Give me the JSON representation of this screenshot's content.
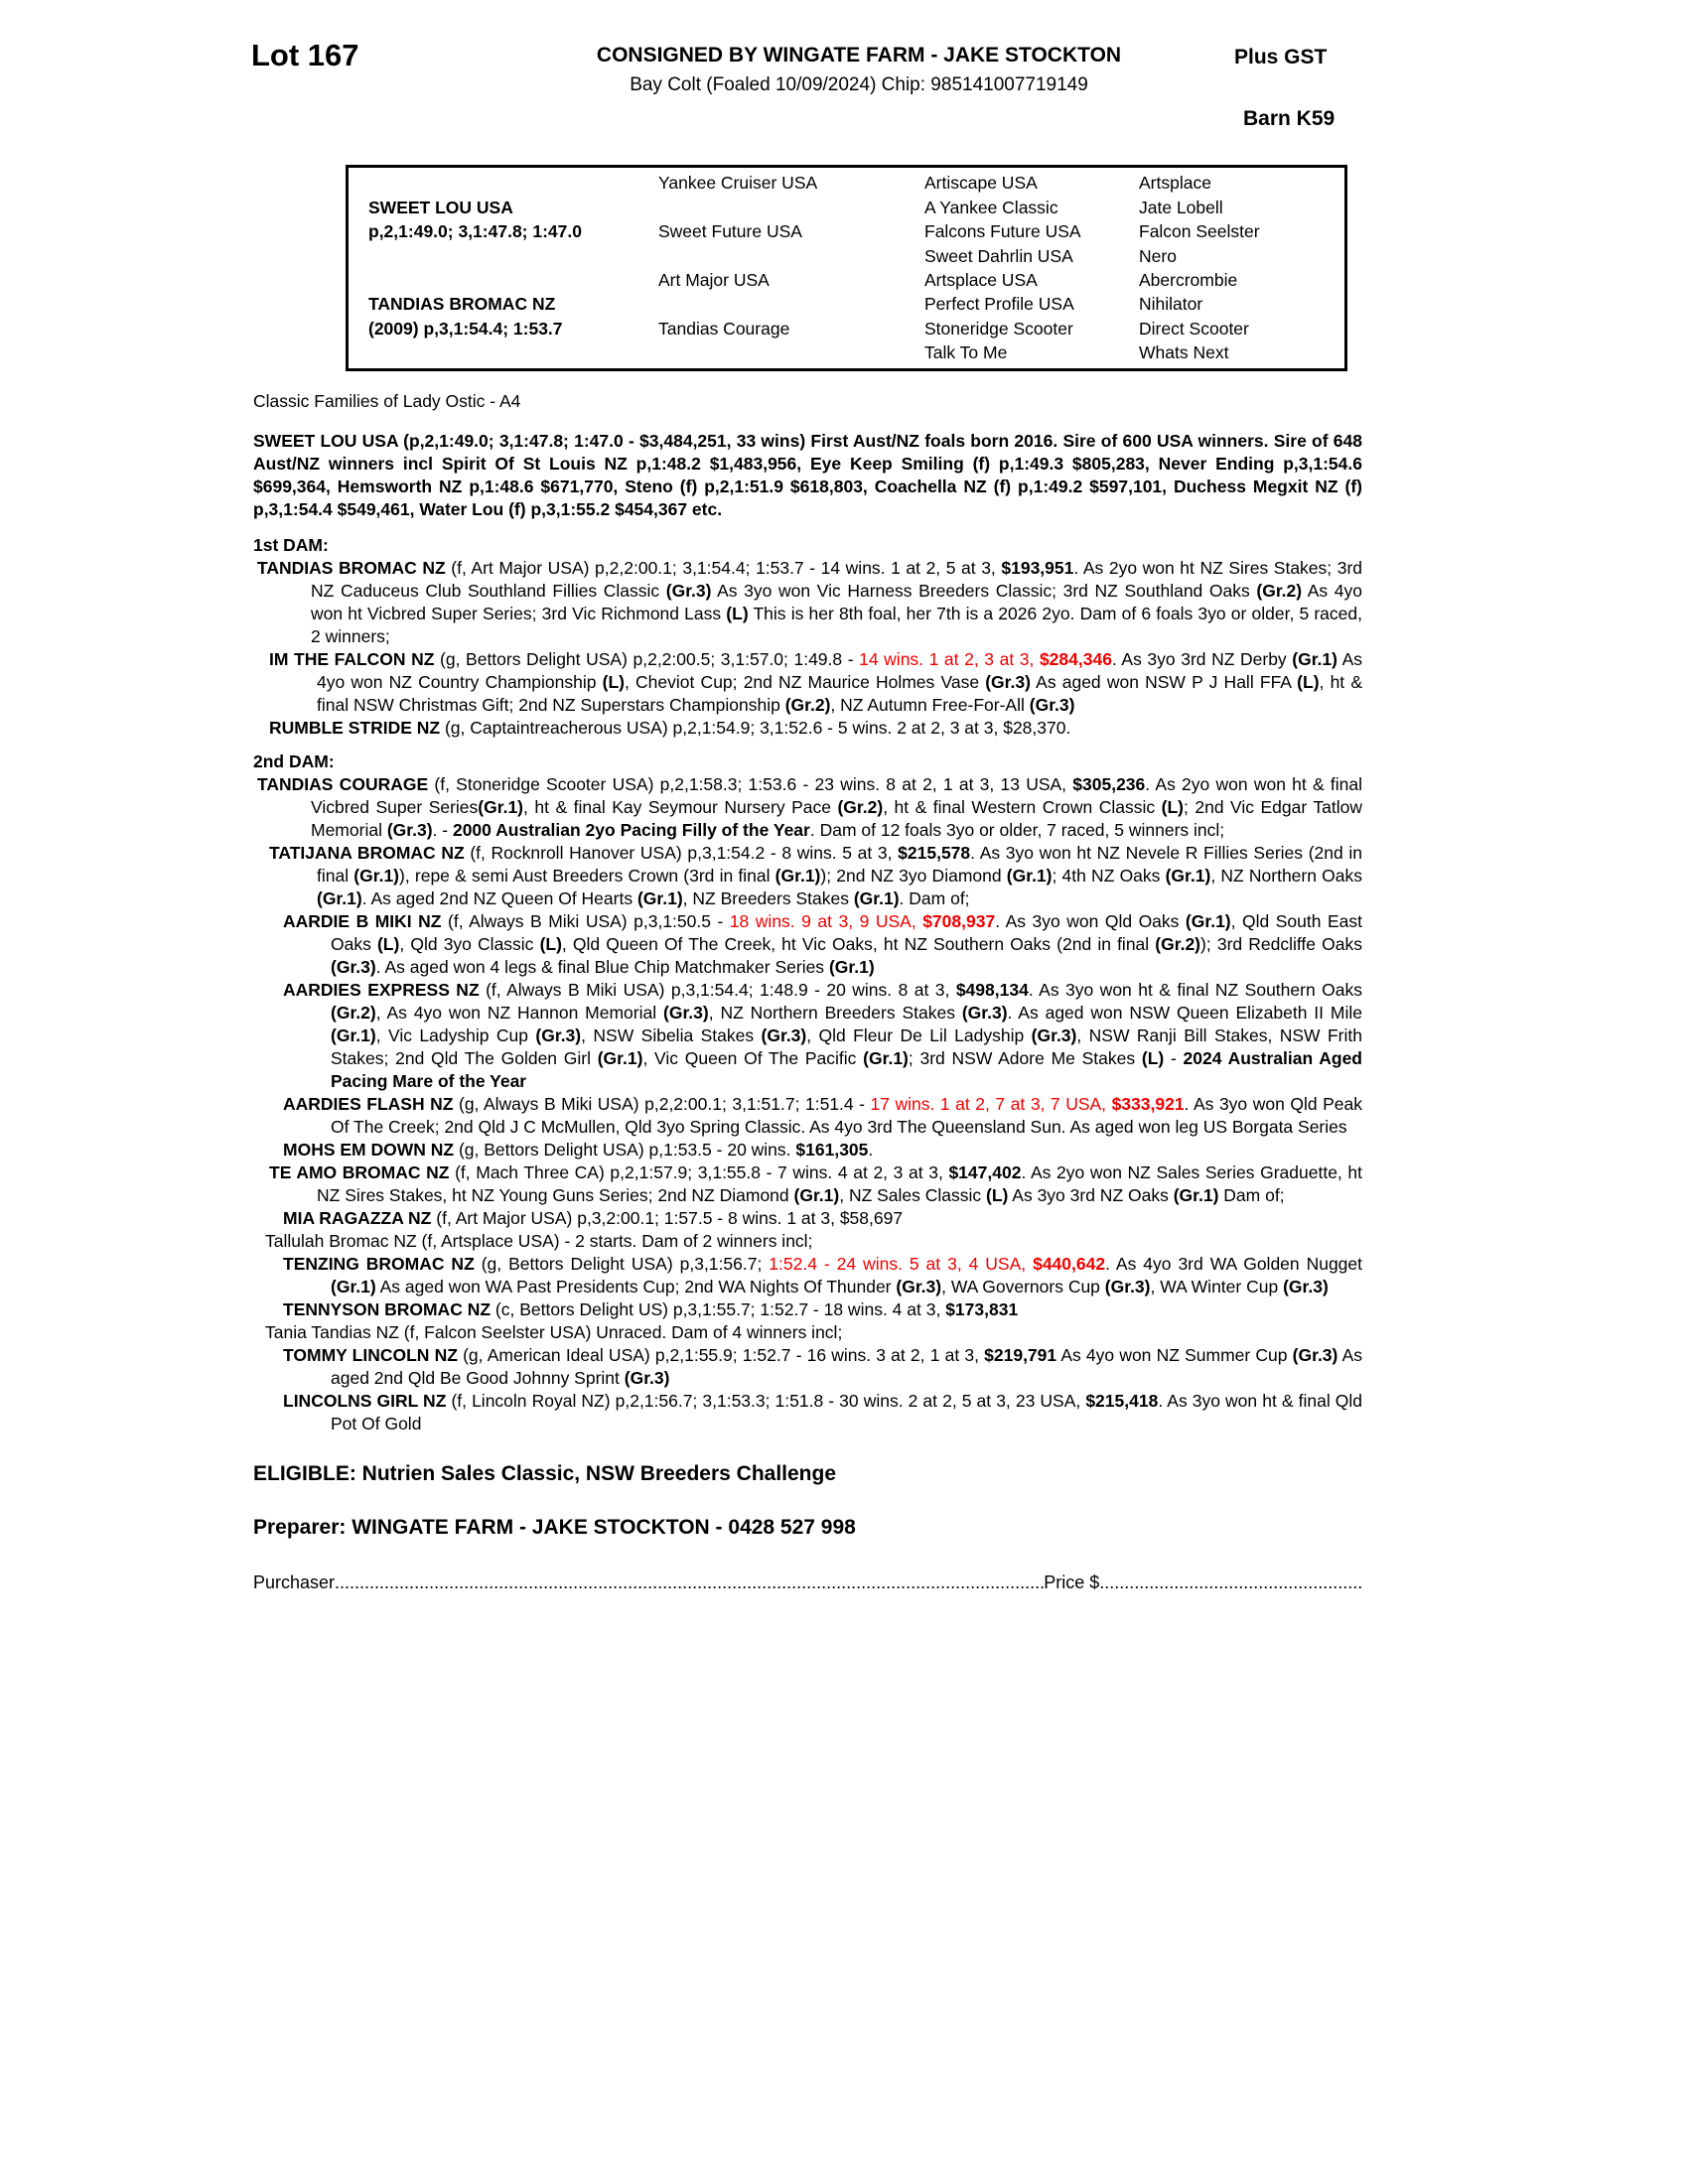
{
  "header": {
    "lot": "Lot 167",
    "consignor": "CONSIGNED BY WINGATE FARM - JAKE STOCKTON",
    "foal_info": "Bay Colt (Foaled 10/09/2024) Chip: 985141007719149",
    "tax": "Plus GST",
    "barn": "Barn K59"
  },
  "colors": {
    "highlight_red": "#ee0000",
    "text": "#000000"
  },
  "pedigree": {
    "rows": [
      [
        "",
        "Yankee Cruiser USA",
        "Artiscape USA",
        "Artsplace"
      ],
      [
        "SWEET LOU USA",
        "",
        "A Yankee Classic",
        "Jate Lobell"
      ],
      [
        "p,2,1:49.0; 3,1:47.8; 1:47.0",
        "Sweet Future USA",
        "Falcons Future USA",
        "Falcon Seelster"
      ],
      [
        "",
        "",
        "Sweet Dahrlin USA",
        "Nero"
      ],
      [
        "",
        "Art Major USA",
        "Artsplace USA",
        "Abercrombie"
      ],
      [
        "TANDIAS BROMAC NZ",
        "",
        "Perfect Profile USA",
        "Nihilator"
      ],
      [
        "(2009) p,3,1:54.4; 1:53.7",
        "Tandias Courage",
        "Stoneridge Scooter",
        "Direct Scooter"
      ],
      [
        "",
        "",
        "Talk To Me",
        "Whats Next"
      ]
    ]
  },
  "family_line": "Classic Families of Lady Ostic - A4",
  "sire_summary": "SWEET LOU USA (p,2,1:49.0; 3,1:47.8; 1:47.0 - $3,484,251, 33 wins) First Aust/NZ foals born 2016. Sire of 600 USA winners. Sire of 648 Aust/NZ winners incl Spirit Of St Louis NZ p,1:48.2 $1,483,956, Eye Keep Smiling (f) p,1:49.3 $805,283, Never Ending p,3,1:54.6 $699,364, Hemsworth NZ p,1:48.6 $671,770, Steno (f) p,2,1:51.9 $618,803, Coachella NZ (f) p,1:49.2 $597,101, Duchess Megxit NZ (f) p,3,1:54.4 $549,461, Water Lou (f) p,3,1:55.2 $454,367 etc.",
  "sections": [
    {
      "name": "heading-1st-dam",
      "level": "h",
      "seg": [
        [
          "b",
          "1st DAM:"
        ]
      ]
    },
    {
      "name": "entry-tandias-bromac",
      "level": "d",
      "seg": [
        [
          "b",
          "TANDIAS BROMAC NZ "
        ],
        [
          "n",
          "(f, Art Major USA) p,2,2:00.1; 3,1:54.4; 1:53.7 - 14 wins. 1 at 2, 5 at 3, "
        ],
        [
          "b",
          "$193,951"
        ],
        [
          "n",
          ". As 2yo won ht NZ Sires Stakes; 3rd NZ Caduceus Club Southland Fillies Classic "
        ],
        [
          "b",
          "(Gr.3)"
        ],
        [
          "n",
          " As 3yo won Vic Harness Breeders Classic; 3rd NZ Southland Oaks "
        ],
        [
          "b",
          "(Gr.2)"
        ],
        [
          "n",
          " As 4yo won ht Vicbred Super Series; 3rd Vic Richmond Lass "
        ],
        [
          "b",
          "(L)"
        ],
        [
          "n",
          " This is her 8th foal, her 7th is a 2026 2yo. Dam of 6 foals 3yo or older, 5 raced, 2 winners;"
        ]
      ]
    },
    {
      "name": "entry-im-the-falcon",
      "level": "s1",
      "seg": [
        [
          "b",
          "IM THE FALCON NZ "
        ],
        [
          "n",
          "(g, Bettors Delight USA) p,2,2:00.5; 3,1:57.0; 1:49.8 - "
        ],
        [
          "r",
          "14 wins. 1 at 2, 3 at 3, "
        ],
        [
          "rb",
          "$284,346"
        ],
        [
          "n",
          ". As 3yo 3rd NZ Derby "
        ],
        [
          "b",
          "(Gr.1)"
        ],
        [
          "n",
          " As 4yo won NZ Country Championship "
        ],
        [
          "b",
          "(L)"
        ],
        [
          "n",
          ", Cheviot Cup; 2nd NZ Maurice Holmes Vase "
        ],
        [
          "b",
          "(Gr.3)"
        ],
        [
          "n",
          " As aged won NSW P J Hall FFA "
        ],
        [
          "b",
          "(L)"
        ],
        [
          "n",
          ", ht & final NSW Christmas Gift; 2nd NZ Superstars Championship "
        ],
        [
          "b",
          "(Gr.2)"
        ],
        [
          "n",
          ", NZ Autumn Free-For-All "
        ],
        [
          "b",
          "(Gr.3)"
        ]
      ]
    },
    {
      "name": "entry-rumble-stride",
      "level": "s1",
      "seg": [
        [
          "b",
          "RUMBLE STRIDE NZ "
        ],
        [
          "n",
          "(g, Captaintreacherous USA) p,2,1:54.9; 3,1:52.6 - 5 wins. 2 at 2, 3 at 3, $28,370."
        ]
      ]
    },
    {
      "name": "heading-2nd-dam",
      "level": "h",
      "seg": [
        [
          "b",
          "2nd DAM:"
        ]
      ]
    },
    {
      "name": "entry-tandias-courage",
      "level": "d",
      "seg": [
        [
          "b",
          "TANDIAS COURAGE "
        ],
        [
          "n",
          "(f, Stoneridge Scooter USA) p,2,1:58.3; 1:53.6 - 23 wins. 8 at 2, 1 at 3, 13 USA, "
        ],
        [
          "b",
          "$305,236"
        ],
        [
          "n",
          ". As 2yo won won ht & final Vicbred Super Series"
        ],
        [
          "b",
          "(Gr.1)"
        ],
        [
          "n",
          ", ht & final Kay Seymour Nursery Pace "
        ],
        [
          "b",
          "(Gr.2)"
        ],
        [
          "n",
          ", ht & final Western Crown Classic "
        ],
        [
          "b",
          "(L)"
        ],
        [
          "n",
          "; 2nd Vic Edgar Tatlow Memorial "
        ],
        [
          "b",
          "(Gr.3)"
        ],
        [
          "n",
          ". - "
        ],
        [
          "b",
          "2000 Australian 2yo Pacing Filly of the Year"
        ],
        [
          "n",
          ". Dam of 12 foals 3yo or older, 7 raced, 5 winners incl;"
        ]
      ]
    },
    {
      "name": "entry-tatijana-bromac",
      "level": "s1",
      "seg": [
        [
          "b",
          "TATIJANA BROMAC NZ "
        ],
        [
          "n",
          "(f, Rocknroll Hanover USA) p,3,1:54.2 - 8 wins. 5 at 3, "
        ],
        [
          "b",
          "$215,578"
        ],
        [
          "n",
          ". As 3yo won ht NZ Nevele R Fillies Series (2nd in final "
        ],
        [
          "b",
          "(Gr.1)"
        ],
        [
          "n",
          "), repe & semi Aust Breeders Crown (3rd in final "
        ],
        [
          "b",
          "(Gr.1)"
        ],
        [
          "n",
          "); 2nd NZ 3yo Diamond "
        ],
        [
          "b",
          "(Gr.1)"
        ],
        [
          "n",
          "; 4th NZ Oaks "
        ],
        [
          "b",
          "(Gr.1)"
        ],
        [
          "n",
          ", NZ Northern Oaks "
        ],
        [
          "b",
          "(Gr.1)"
        ],
        [
          "n",
          ". As aged 2nd NZ Queen Of Hearts "
        ],
        [
          "b",
          "(Gr.1)"
        ],
        [
          "n",
          ", NZ Breeders Stakes "
        ],
        [
          "b",
          "(Gr.1)"
        ],
        [
          "n",
          ". Dam of;"
        ]
      ]
    },
    {
      "name": "entry-aardie-b-miki",
      "level": "s2",
      "seg": [
        [
          "b",
          "AARDIE B MIKI NZ "
        ],
        [
          "n",
          "(f, Always B Miki USA) p,3,1:50.5 - "
        ],
        [
          "r",
          "18 wins. 9 at 3, 9 USA, "
        ],
        [
          "rb",
          "$708,937"
        ],
        [
          "n",
          ". As 3yo won Qld Oaks "
        ],
        [
          "b",
          "(Gr.1)"
        ],
        [
          "n",
          ", Qld South East Oaks "
        ],
        [
          "b",
          "(L)"
        ],
        [
          "n",
          ", Qld 3yo Classic "
        ],
        [
          "b",
          "(L)"
        ],
        [
          "n",
          ", Qld Queen Of The Creek, ht Vic Oaks, ht NZ Southern Oaks (2nd in final "
        ],
        [
          "b",
          "(Gr.2)"
        ],
        [
          "n",
          "); 3rd Redcliffe Oaks "
        ],
        [
          "b",
          "(Gr.3)"
        ],
        [
          "n",
          ". As aged won 4 legs & final Blue Chip Matchmaker Series "
        ],
        [
          "b",
          "(Gr.1)"
        ]
      ]
    },
    {
      "name": "entry-aardies-express",
      "level": "s2",
      "seg": [
        [
          "b",
          "AARDIES EXPRESS NZ "
        ],
        [
          "n",
          "(f, Always B Miki USA) p,3,1:54.4; 1:48.9 - 20 wins. 8 at 3, "
        ],
        [
          "b",
          "$498,134"
        ],
        [
          "n",
          ". As 3yo won ht & final NZ Southern Oaks "
        ],
        [
          "b",
          "(Gr.2)"
        ],
        [
          "n",
          ", As 4yo won NZ Hannon Memorial "
        ],
        [
          "b",
          "(Gr.3)"
        ],
        [
          "n",
          ", NZ Northern Breeders Stakes "
        ],
        [
          "b",
          "(Gr.3)"
        ],
        [
          "n",
          ". As aged won NSW Queen Elizabeth II Mile "
        ],
        [
          "b",
          "(Gr.1)"
        ],
        [
          "n",
          ", Vic Ladyship Cup "
        ],
        [
          "b",
          "(Gr.3)"
        ],
        [
          "n",
          ", NSW Sibelia Stakes "
        ],
        [
          "b",
          "(Gr.3)"
        ],
        [
          "n",
          ", Qld Fleur De Lil Ladyship "
        ],
        [
          "b",
          "(Gr.3)"
        ],
        [
          "n",
          ", NSW Ranji Bill Stakes, NSW Frith Stakes; 2nd Qld The Golden Girl "
        ],
        [
          "b",
          "(Gr.1)"
        ],
        [
          "n",
          ", Vic Queen Of The Pacific "
        ],
        [
          "b",
          "(Gr.1)"
        ],
        [
          "n",
          "; 3rd NSW Adore Me Stakes "
        ],
        [
          "b",
          "(L)"
        ],
        [
          "n",
          " - "
        ],
        [
          "b",
          "2024 Australian Aged Pacing Mare of the Year"
        ]
      ]
    },
    {
      "name": "entry-aardies-flash",
      "level": "s2",
      "seg": [
        [
          "b",
          "AARDIES FLASH NZ "
        ],
        [
          "n",
          "(g, Always B Miki USA) p,2,2:00.1; 3,1:51.7; 1:51.4 - "
        ],
        [
          "r",
          "17 wins. 1 at 2, 7 at 3, 7 USA, "
        ],
        [
          "rb",
          "$333,921"
        ],
        [
          "n",
          ". As 3yo won Qld Peak Of The Creek; 2nd Qld J C McMullen, Qld 3yo Spring Classic. As 4yo 3rd The Queensland Sun. As aged won leg US Borgata Series"
        ]
      ]
    },
    {
      "name": "entry-mohs-em-down",
      "level": "s2",
      "seg": [
        [
          "b",
          "MOHS EM DOWN NZ "
        ],
        [
          "n",
          "(g, Bettors Delight USA) p,1:53.5 - 20 wins. "
        ],
        [
          "b",
          "$161,305"
        ],
        [
          "n",
          "."
        ]
      ]
    },
    {
      "name": "entry-te-amo-bromac",
      "level": "s1",
      "seg": [
        [
          "b",
          "TE AMO BROMAC NZ "
        ],
        [
          "n",
          "(f, Mach Three CA) p,2,1:57.9; 3,1:55.8 - 7 wins. 4 at 2, 3 at 3, "
        ],
        [
          "b",
          "$147,402"
        ],
        [
          "n",
          ". As 2yo won NZ Sales Series Graduette, ht NZ Sires Stakes, ht NZ Young Guns Series; 2nd NZ Diamond "
        ],
        [
          "b",
          "(Gr.1)"
        ],
        [
          "n",
          ", NZ Sales Classic "
        ],
        [
          "b",
          "(L)"
        ],
        [
          "n",
          " As 3yo 3rd NZ Oaks "
        ],
        [
          "b",
          "(Gr.1)"
        ],
        [
          "n",
          " Dam of;"
        ]
      ]
    },
    {
      "name": "entry-mia-ragazza",
      "level": "s2",
      "seg": [
        [
          "b",
          "MIA RAGAZZA NZ "
        ],
        [
          "n",
          "(f, Art Major USA) p,3,2:00.1; 1:57.5 - 8 wins. 1 at 3, $58,697"
        ]
      ]
    },
    {
      "name": "entry-tallulah-bromac",
      "level": "t",
      "seg": [
        [
          "n",
          "Tallulah Bromac NZ (f, Artsplace USA) - 2 starts. Dam of 2 winners incl;"
        ]
      ]
    },
    {
      "name": "entry-tenzing-bromac",
      "level": "s2",
      "seg": [
        [
          "b",
          "TENZING BROMAC NZ "
        ],
        [
          "n",
          "(g, Bettors Delight USA) p,3,1:56.7; "
        ],
        [
          "r",
          "1:52.4 - 24 wins. 5 at 3, 4 USA, "
        ],
        [
          "rb",
          "$440,642"
        ],
        [
          "n",
          ". As 4yo 3rd WA Golden Nugget "
        ],
        [
          "b",
          "(Gr.1)"
        ],
        [
          "n",
          " As aged won WA Past Presidents Cup; 2nd WA Nights Of Thunder "
        ],
        [
          "b",
          "(Gr.3)"
        ],
        [
          "n",
          ", WA Governors Cup "
        ],
        [
          "b",
          "(Gr.3)"
        ],
        [
          "n",
          ", WA Winter Cup "
        ],
        [
          "b",
          "(Gr.3)"
        ]
      ]
    },
    {
      "name": "entry-tennyson-bromac",
      "level": "s2",
      "seg": [
        [
          "b",
          "TENNYSON BROMAC NZ "
        ],
        [
          "n",
          "(c, Bettors Delight US) p,3,1:55.7; 1:52.7 - 18 wins. 4 at 3, "
        ],
        [
          "b",
          "$173,831"
        ]
      ]
    },
    {
      "name": "entry-tania-tandias",
      "level": "t",
      "seg": [
        [
          "n",
          "Tania Tandias NZ (f, Falcon Seelster USA) Unraced. Dam of 4 winners incl;"
        ]
      ]
    },
    {
      "name": "entry-tommy-lincoln",
      "level": "s2",
      "seg": [
        [
          "b",
          "TOMMY LINCOLN NZ "
        ],
        [
          "n",
          "(g, American Ideal USA) p,2,1:55.9; 1:52.7 - 16 wins. 3 at 2, 1 at 3, "
        ],
        [
          "b",
          "$219,791"
        ],
        [
          "n",
          " As 4yo won NZ Summer Cup "
        ],
        [
          "b",
          "(Gr.3)"
        ],
        [
          "n",
          " As aged 2nd Qld Be Good Johnny Sprint "
        ],
        [
          "b",
          "(Gr.3)"
        ]
      ]
    },
    {
      "name": "entry-lincolns-girl",
      "level": "s2",
      "seg": [
        [
          "b",
          "LINCOLNS GIRL NZ "
        ],
        [
          "n",
          "(f, Lincoln Royal NZ) p,2,1:56.7; 3,1:53.3; 1:51.8 - 30 wins. 2 at 2, 5 at 3, 23 USA, "
        ],
        [
          "b",
          "$215,418"
        ],
        [
          "n",
          ". As 3yo won ht & final Qld Pot Of Gold"
        ]
      ]
    }
  ],
  "footer": {
    "eligible": "ELIGIBLE: Nutrien Sales Classic, NSW Breeders Challenge",
    "preparer": "Preparer: WINGATE FARM - JAKE STOCKTON - 0428 527 998",
    "purchaser_label": "Purchaser",
    "purchaser_dots": "..................................................................................................................................................................................",
    "price_label": "Price $",
    "price_dots": ".........................................................................."
  }
}
